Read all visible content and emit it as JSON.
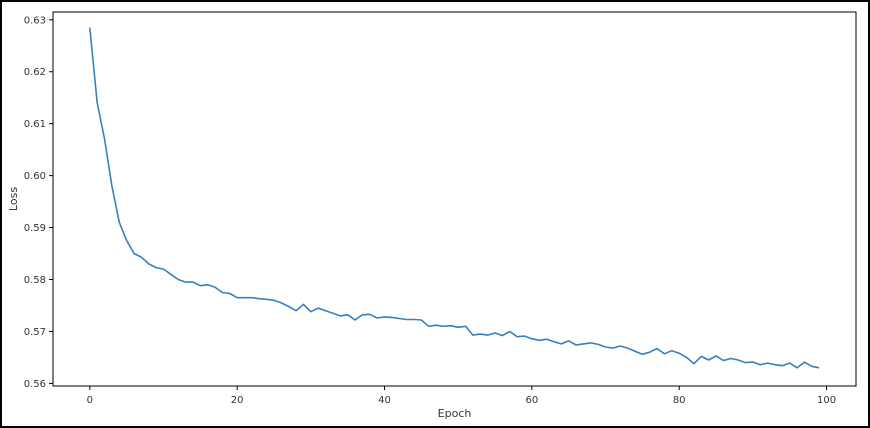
{
  "chart_data": {
    "type": "line",
    "title": "",
    "xlabel": "Epoch",
    "ylabel": "Loss",
    "xlim": [
      -5,
      104
    ],
    "ylim": [
      0.5595,
      0.6315
    ],
    "grid": false,
    "x_ticks": [
      0,
      20,
      40,
      60,
      80,
      100
    ],
    "x_tick_labels": [
      "0",
      "20",
      "40",
      "60",
      "80",
      "100"
    ],
    "y_ticks": [
      0.56,
      0.57,
      0.58,
      0.59,
      0.6,
      0.61,
      0.62,
      0.63
    ],
    "y_tick_labels": [
      "0.56",
      "0.57",
      "0.58",
      "0.59",
      "0.60",
      "0.61",
      "0.62",
      "0.63"
    ],
    "colors": {
      "line": "#3a7fbd",
      "axis": "#000000",
      "text": "#333333"
    },
    "series": [
      {
        "x": [
          0,
          1,
          2,
          3,
          4,
          5,
          6,
          7,
          8,
          9,
          10,
          11,
          12,
          13,
          14,
          15,
          16,
          17,
          18,
          19,
          20,
          21,
          22,
          23,
          24,
          25,
          26,
          27,
          28,
          29,
          30,
          31,
          32,
          33,
          34,
          35,
          36,
          37,
          38,
          39,
          40,
          41,
          42,
          43,
          44,
          45,
          46,
          47,
          48,
          49,
          50,
          51,
          52,
          53,
          54,
          55,
          56,
          57,
          58,
          59,
          60,
          61,
          62,
          63,
          64,
          65,
          66,
          67,
          68,
          69,
          70,
          71,
          72,
          73,
          74,
          75,
          76,
          77,
          78,
          79,
          80,
          81,
          82,
          83,
          84,
          85,
          86,
          87,
          88,
          89,
          90,
          91,
          92,
          93,
          94,
          95,
          96,
          97,
          98,
          99
        ],
        "y": [
          0.6285,
          0.614,
          0.607,
          0.598,
          0.591,
          0.5875,
          0.585,
          0.5843,
          0.583,
          0.5823,
          0.582,
          0.581,
          0.58,
          0.5795,
          0.5795,
          0.5788,
          0.579,
          0.5785,
          0.5775,
          0.5773,
          0.5765,
          0.5765,
          0.5765,
          0.5763,
          0.5762,
          0.576,
          0.5755,
          0.5748,
          0.574,
          0.5752,
          0.5738,
          0.5745,
          0.574,
          0.5735,
          0.573,
          0.5732,
          0.5722,
          0.5732,
          0.5733,
          0.5726,
          0.5728,
          0.5727,
          0.5725,
          0.5723,
          0.5723,
          0.5722,
          0.571,
          0.5712,
          0.571,
          0.5711,
          0.5708,
          0.571,
          0.5693,
          0.5695,
          0.5693,
          0.5697,
          0.5692,
          0.57,
          0.569,
          0.5691,
          0.5686,
          0.5683,
          0.5685,
          0.568,
          0.5676,
          0.5682,
          0.5674,
          0.5676,
          0.5678,
          0.5675,
          0.567,
          0.5668,
          0.5672,
          0.5668,
          0.5662,
          0.5656,
          0.566,
          0.5667,
          0.5657,
          0.5663,
          0.5658,
          0.565,
          0.5638,
          0.5652,
          0.5645,
          0.5653,
          0.5644,
          0.5648,
          0.5645,
          0.564,
          0.5641,
          0.5636,
          0.5639,
          0.5636,
          0.5634,
          0.5639,
          0.563,
          0.5641,
          0.5633,
          0.563
        ]
      }
    ]
  }
}
